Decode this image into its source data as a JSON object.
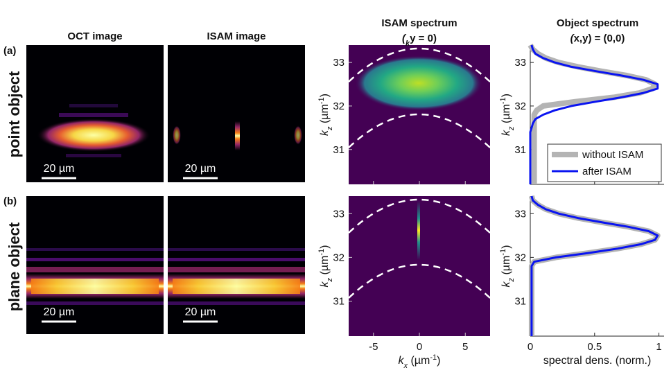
{
  "panel_labels": [
    "(a)",
    "(b)"
  ],
  "row_labels": [
    "point object",
    "plane object"
  ],
  "image_titles": [
    "OCT image",
    "ISAM image"
  ],
  "scale_bar": "20 µm",
  "chart_data": [
    {
      "type": "image",
      "title": [
        "ISAM spectrum",
        "(",
        "k",
        "y",
        " = 0)"
      ],
      "xlim": [
        -7.7,
        7.7
      ],
      "xticks": [
        -5,
        0,
        5
      ],
      "ylim": [
        30.2,
        33.4
      ],
      "yticks": [
        31,
        32,
        33
      ],
      "ylabel": [
        "k",
        "z",
        " (µm",
        "-1",
        ")"
      ]
    },
    {
      "type": "line",
      "title": [
        "Object spectrum",
        "(",
        "x,y",
        ") = (0,0)"
      ],
      "y": [
        30.2,
        30.3,
        30.4,
        30.5,
        30.6,
        30.7,
        30.8,
        30.9,
        31.0,
        31.1,
        31.2,
        31.3,
        31.4,
        31.5,
        31.6,
        31.7,
        31.8,
        31.9,
        32.0,
        32.1,
        32.2,
        32.3,
        32.4,
        32.5,
        32.6,
        32.7,
        32.8,
        32.9,
        33.0,
        33.1,
        33.2,
        33.3,
        33.4
      ],
      "series": [
        {
          "name": "without ISAM",
          "color": "#b4b4b4",
          "values": [
            0.03,
            0.03,
            0.03,
            0.03,
            0.03,
            0.03,
            0.03,
            0.03,
            0.03,
            0.03,
            0.03,
            0.03,
            0.03,
            0.03,
            0.03,
            0.03,
            0.03,
            0.05,
            0.1,
            0.35,
            0.65,
            0.85,
            0.95,
            0.97,
            0.9,
            0.75,
            0.55,
            0.37,
            0.22,
            0.12,
            0.06,
            0.02,
            0.0
          ]
        },
        {
          "name": "after ISAM",
          "color": "#0a14f0",
          "values": [
            0,
            0,
            0,
            0,
            0,
            0,
            0,
            0,
            0,
            0,
            0,
            0,
            0,
            0.01,
            0.02,
            0.04,
            0.1,
            0.19,
            0.32,
            0.51,
            0.71,
            0.88,
            0.99,
            0.99,
            0.88,
            0.71,
            0.51,
            0.32,
            0.19,
            0.1,
            0.04,
            0.02,
            0.01
          ]
        }
      ],
      "xlim": [
        0,
        1.04
      ],
      "xticks": [
        0,
        0.5,
        1
      ],
      "ylim": [
        30.2,
        33.4
      ],
      "yticks": [
        31,
        32,
        33
      ],
      "ylabel": [
        "k",
        "z",
        " (µm",
        "-1",
        ")"
      ],
      "legend": "lower right"
    },
    {
      "type": "image",
      "xlim": [
        -7.7,
        7.7
      ],
      "xticks": [
        -5,
        0,
        5
      ],
      "ylim": [
        30.2,
        33.4
      ],
      "yticks": [
        31,
        32,
        33
      ],
      "xlabel": [
        "k",
        "x",
        " (µm",
        "-1",
        ")"
      ],
      "ylabel": [
        "k",
        "z",
        " (µm",
        "-1",
        ")"
      ]
    },
    {
      "type": "line",
      "y": [
        30.2,
        30.3,
        30.4,
        30.5,
        30.6,
        30.7,
        30.8,
        30.9,
        31.0,
        31.1,
        31.2,
        31.3,
        31.4,
        31.5,
        31.6,
        31.7,
        31.8,
        31.9,
        32.0,
        32.1,
        32.2,
        32.3,
        32.4,
        32.5,
        32.6,
        32.7,
        32.8,
        32.9,
        33.0,
        33.1,
        33.2,
        33.3,
        33.4
      ],
      "series": [
        {
          "name": "without ISAM",
          "color": "#b4b4b4",
          "values": [
            0.01,
            0.01,
            0.01,
            0.01,
            0.01,
            0.01,
            0.01,
            0.01,
            0.01,
            0.01,
            0.01,
            0.01,
            0.01,
            0.01,
            0.01,
            0.01,
            0.01,
            0.03,
            0.2,
            0.45,
            0.68,
            0.86,
            0.97,
            0.99,
            0.92,
            0.76,
            0.56,
            0.37,
            0.22,
            0.12,
            0.06,
            0.02,
            0.01
          ]
        },
        {
          "name": "after ISAM",
          "color": "#0a14f0",
          "values": [
            0.01,
            0.01,
            0.01,
            0.01,
            0.01,
            0.01,
            0.01,
            0.01,
            0.01,
            0.01,
            0.01,
            0.01,
            0.01,
            0.01,
            0.01,
            0.01,
            0.01,
            0.03,
            0.2,
            0.45,
            0.68,
            0.86,
            0.97,
            0.99,
            0.92,
            0.76,
            0.56,
            0.37,
            0.22,
            0.12,
            0.06,
            0.02,
            0.01
          ]
        }
      ],
      "xlim": [
        0,
        1.04
      ],
      "xticks": [
        0,
        0.5,
        1
      ],
      "ylim": [
        30.2,
        33.4
      ],
      "yticks": [
        31,
        32,
        33
      ],
      "xlabel": [
        "spectral dens. (norm.)"
      ],
      "ylabel": [
        "k",
        "z",
        " (µm",
        "-1",
        ")"
      ]
    }
  ]
}
